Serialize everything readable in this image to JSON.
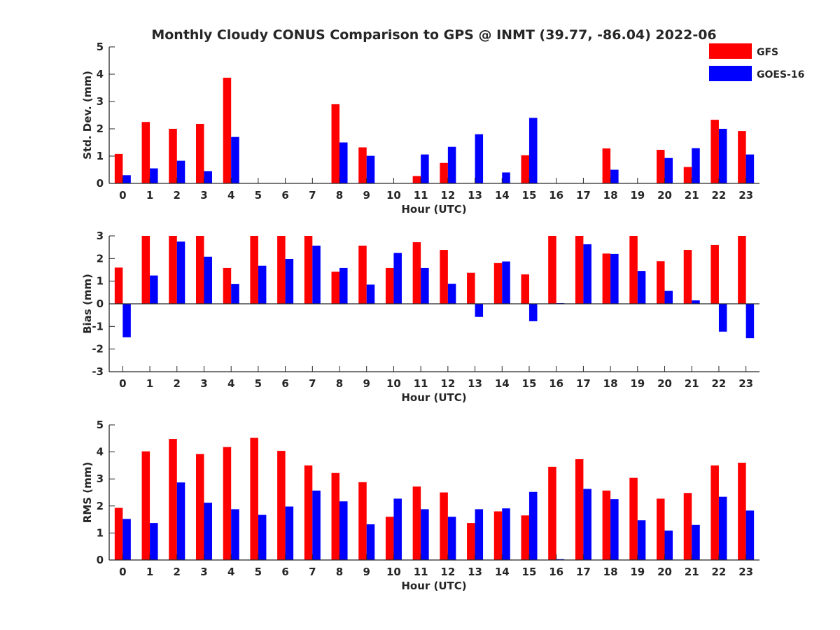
{
  "chart_data": {
    "type": "bar",
    "title": "Monthly Cloudy CONUS Comparison to GPS @ INMT (39.77, -86.04) 2022-06",
    "legend": {
      "placement": "top-right",
      "entries": [
        {
          "name": "GFS",
          "color": "#ff0000"
        },
        {
          "name": "GOES-16",
          "color": "#0000ff"
        }
      ]
    },
    "categories": [
      "0",
      "1",
      "2",
      "3",
      "4",
      "5",
      "6",
      "7",
      "8",
      "9",
      "10",
      "11",
      "12",
      "13",
      "14",
      "15",
      "16",
      "17",
      "18",
      "19",
      "20",
      "21",
      "22",
      "23"
    ],
    "panels": [
      {
        "xlabel": "Hour (UTC)",
        "ylabel": "Std. Dev. (mm)",
        "ylim": [
          0,
          5
        ],
        "yticks": [
          0,
          1,
          2,
          3,
          4,
          5
        ],
        "series": [
          {
            "name": "GFS",
            "color": "#ff0000",
            "values": [
              1.08,
              2.25,
              2.0,
              2.18,
              3.87,
              0,
              0,
              0,
              2.9,
              1.32,
              0,
              0.27,
              0.75,
              0,
              0,
              1.03,
              0,
              0,
              1.28,
              0,
              1.23,
              0.6,
              2.33,
              1.92
            ]
          },
          {
            "name": "GOES-16",
            "color": "#0000ff",
            "values": [
              0.3,
              0.55,
              0.83,
              0.45,
              1.7,
              0,
              0,
              0,
              1.5,
              1.01,
              0,
              1.06,
              1.34,
              1.8,
              0.4,
              2.4,
              0,
              0,
              0.5,
              0,
              0.93,
              1.29,
              2.0,
              1.06
            ]
          }
        ]
      },
      {
        "xlabel": "Hour (UTC)",
        "ylabel": "Bias (mm)",
        "ylim": [
          -3,
          3
        ],
        "yticks": [
          -3,
          -2,
          -1,
          0,
          1,
          2,
          3
        ],
        "series": [
          {
            "name": "GFS",
            "color": "#ff0000",
            "values": [
              1.6,
              3.0,
              3.0,
              3.0,
              1.58,
              3.0,
              3.0,
              3.0,
              1.42,
              2.57,
              1.58,
              2.72,
              2.38,
              1.37,
              1.8,
              1.3,
              3.0,
              3.0,
              2.22,
              3.0,
              1.88,
              2.38,
              2.6,
              3.0
            ]
          },
          {
            "name": "GOES-16",
            "color": "#0000ff",
            "values": [
              -1.48,
              1.25,
              2.75,
              2.08,
              0.87,
              1.68,
              1.98,
              2.57,
              1.58,
              0.85,
              2.25,
              1.58,
              0.88,
              -0.58,
              1.87,
              -0.77,
              0.03,
              2.63,
              2.2,
              1.45,
              0.57,
              0.15,
              -1.23,
              -1.52
            ]
          }
        ]
      },
      {
        "xlabel": "Hour (UTC)",
        "ylabel": "RMS (mm)",
        "ylim": [
          0,
          5
        ],
        "yticks": [
          0,
          1,
          2,
          3,
          4,
          5
        ],
        "series": [
          {
            "name": "GFS",
            "color": "#ff0000",
            "values": [
              1.93,
              4.02,
              4.48,
              3.92,
              4.18,
              4.52,
              4.04,
              3.5,
              3.22,
              2.88,
              1.6,
              2.72,
              2.5,
              1.37,
              1.8,
              1.65,
              3.45,
              3.73,
              2.57,
              3.04,
              2.27,
              2.48,
              3.5,
              3.6
            ]
          },
          {
            "name": "GOES-16",
            "color": "#0000ff",
            "values": [
              1.52,
              1.37,
              2.87,
              2.12,
              1.88,
              1.67,
              1.98,
              2.57,
              2.17,
              1.32,
              2.27,
              1.88,
              1.6,
              1.88,
              1.91,
              2.52,
              0.03,
              2.63,
              2.25,
              1.47,
              1.09,
              1.3,
              2.34,
              1.83
            ]
          }
        ]
      }
    ]
  }
}
